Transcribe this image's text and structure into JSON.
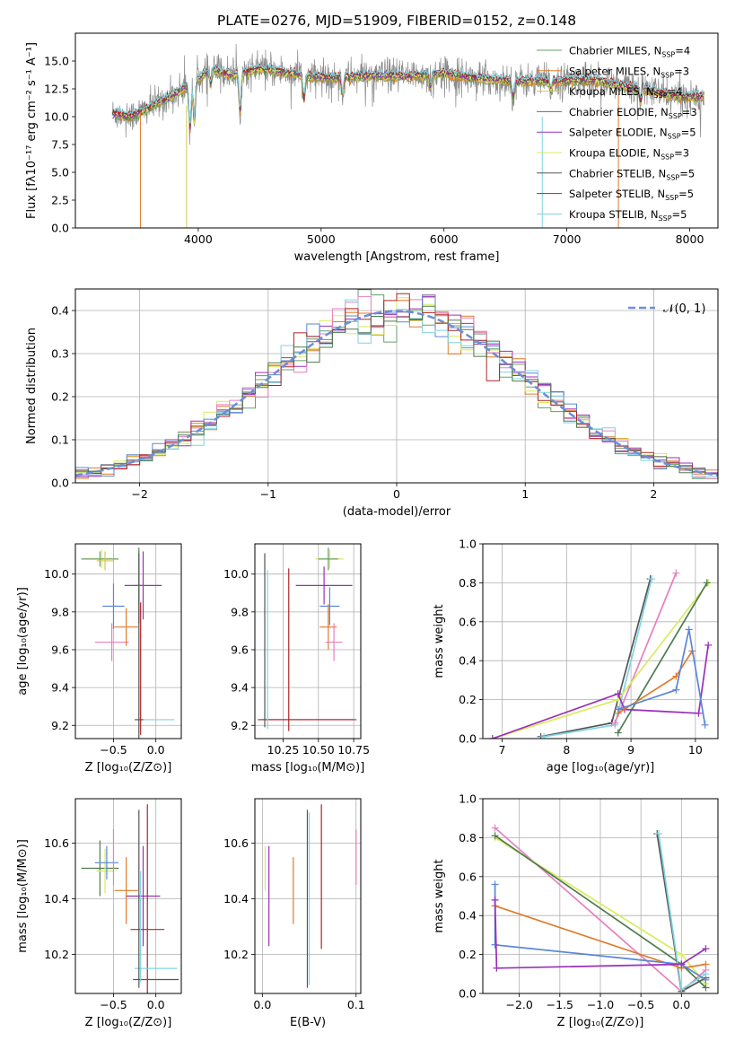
{
  "colors": {
    "Chabrier MILES": "#6a9f6a",
    "Salpeter MILES": "#e07b2a",
    "Kroupa MILES": "#d4c84a",
    "Chabrier ELODIE": "#4e7d4e",
    "Salpeter ELODIE": "#9b30b8",
    "Kroupa ELODIE": "#d8ec5e",
    "Chabrier STELIB": "#555555",
    "Salpeter STELIB": "#b22222",
    "Kroupa STELIB": "#7fd3e0",
    "normal": "#6a8fd8",
    "pink": "#e87fc0",
    "blue": "#5b86d8",
    "grid": "#b0b0b0"
  },
  "chart_data": [
    {
      "id": "spectrum",
      "type": "line",
      "title": "PLATE=0276, MJD=51909, FIBERID=0152, z=0.148",
      "xlabel": "wavelength [Angstrom, rest frame]",
      "ylabel": "Flux [fλ10⁻¹⁷ erg cm⁻² s⁻¹ A⁻¹]",
      "xlim": [
        3000,
        8230
      ],
      "ylim": [
        0,
        17.5
      ],
      "xticks": [
        4000,
        5000,
        6000,
        7000,
        8000
      ],
      "yticks": [
        0.0,
        2.5,
        5.0,
        7.5,
        10.0,
        12.5,
        15.0
      ],
      "legend": "top-right",
      "series": [
        {
          "name": "Chabrier MILES, N_SSP=4",
          "label": "Chabrier MILES, N",
          "sub": "SSP",
          "tail": "=4",
          "color": "Chabrier MILES"
        },
        {
          "name": "Salpeter MILES, N_SSP=3",
          "label": "Salpeter MILES, N",
          "sub": "SSP",
          "tail": "=3",
          "color": "Salpeter MILES"
        },
        {
          "name": "Kroupa MILES, N_SSP=4",
          "label": "Kroupa MILES, N",
          "sub": "SSP",
          "tail": "=4",
          "color": "Kroupa MILES"
        },
        {
          "name": "Chabrier ELODIE, N_SSP=3",
          "label": "Chabrier ELODIE, N",
          "sub": "SSP",
          "tail": "=3",
          "color": "Chabrier ELODIE"
        },
        {
          "name": "Salpeter ELODIE, N_SSP=5",
          "label": "Salpeter ELODIE, N",
          "sub": "SSP",
          "tail": "=5",
          "color": "Salpeter ELODIE"
        },
        {
          "name": "Kroupa ELODIE, N_SSP=3",
          "label": "Kroupa ELODIE, N",
          "sub": "SSP",
          "tail": "=3",
          "color": "Kroupa ELODIE"
        },
        {
          "name": "Chabrier STELIB, N_SSP=5",
          "label": "Chabrier STELIB, N",
          "sub": "SSP",
          "tail": "=5",
          "color": "Chabrier STELIB"
        },
        {
          "name": "Salpeter STELIB, N_SSP=5",
          "label": "Salpeter STELIB, N",
          "sub": "SSP",
          "tail": "=5",
          "color": "Salpeter STELIB"
        },
        {
          "name": "Kroupa STELIB, N_SSP=5",
          "label": "Kroupa STELIB, N",
          "sub": "SSP",
          "tail": "=5",
          "color": "Kroupa STELIB"
        }
      ],
      "continuum": [
        [
          3300,
          10.3
        ],
        [
          3450,
          10.0
        ],
        [
          3600,
          10.8
        ],
        [
          3800,
          12.0
        ],
        [
          3950,
          13.0
        ],
        [
          4100,
          14.2
        ],
        [
          4300,
          13.8
        ],
        [
          4500,
          14.3
        ],
        [
          4700,
          14.0
        ],
        [
          4900,
          13.6
        ],
        [
          5100,
          13.5
        ],
        [
          5400,
          13.7
        ],
        [
          5700,
          13.6
        ],
        [
          6000,
          13.9
        ],
        [
          6300,
          13.4
        ],
        [
          6600,
          13.2
        ],
        [
          6900,
          13.2
        ],
        [
          7200,
          13.3
        ],
        [
          7600,
          12.5
        ],
        [
          7900,
          11.8
        ],
        [
          8100,
          11.8
        ]
      ]
    },
    {
      "id": "residuals",
      "type": "histogram",
      "xlabel": "(data-model)/error",
      "ylabel": "Normed distribution",
      "xlim": [
        -2.5,
        2.5
      ],
      "ylim": [
        0,
        0.45
      ],
      "xticks": [
        -2,
        -1,
        0,
        1,
        2
      ],
      "yticks": [
        0.0,
        0.1,
        0.2,
        0.3,
        0.4
      ],
      "legend": "top-right",
      "legend_label": "𝒩(0, 1)",
      "bins": 50
    },
    {
      "id": "z-age",
      "type": "errorbar",
      "xlabel": "Z [log₁₀(Z/Z⊙)]",
      "ylabel": "age  [log₁₀(age/yr)]",
      "xlim": [
        -0.95,
        0.3
      ],
      "ylim": [
        9.13,
        10.16
      ],
      "xticks": [
        -0.5,
        0.0
      ],
      "yticks": [
        9.2,
        9.4,
        9.6,
        9.8,
        10.0
      ],
      "points": [
        {
          "x": -0.64,
          "y": 10.08,
          "xerr": 0.2,
          "yerr": 0.05,
          "c": "Kroupa ELODIE"
        },
        {
          "x": -0.66,
          "y": 10.08,
          "xerr": 0.22,
          "yerr": 0.04,
          "c": "Chabrier MILES"
        },
        {
          "x": -0.6,
          "y": 10.07,
          "xerr": 0.1,
          "yerr": 0.05,
          "c": "Kroupa MILES"
        },
        {
          "x": -0.5,
          "y": 9.83,
          "xerr": 0.13,
          "yerr": 0.12,
          "c": "blue"
        },
        {
          "x": -0.52,
          "y": 9.64,
          "xerr": 0.2,
          "yerr": 0.1,
          "c": "pink"
        },
        {
          "x": -0.35,
          "y": 9.72,
          "xerr": 0.14,
          "yerr": 0.1,
          "c": "Salpeter MILES"
        },
        {
          "x": -0.15,
          "y": 9.94,
          "xerr": 0.22,
          "yerr": 0.18,
          "c": "Salpeter ELODIE"
        },
        {
          "x": -0.2,
          "y": 9.94,
          "xerr": 0.05,
          "yerr": 0.2,
          "c": "Chabrier ELODIE"
        },
        {
          "x": 0.0,
          "y": 9.23,
          "xerr": 0.22,
          "yerr": 0.0,
          "c": "Kroupa STELIB"
        },
        {
          "x": -0.2,
          "y": 9.23,
          "xerr": 0.05,
          "yerr": 0.88,
          "c": "Chabrier STELIB"
        },
        {
          "x": -0.18,
          "y": 9.5,
          "xerr": 0.0,
          "yerr": 0.35,
          "c": "Salpeter STELIB"
        }
      ]
    },
    {
      "id": "mass-age",
      "type": "errorbar",
      "xlabel": "mass [log₁₀(M/M⊙)]",
      "ylabel": "",
      "xlim": [
        10.05,
        10.8
      ],
      "ylim": [
        9.13,
        10.16
      ],
      "xticks": [
        10.25,
        10.5,
        10.75
      ],
      "yticks": [
        9.2,
        9.4,
        9.6,
        9.8,
        10.0
      ],
      "points": [
        {
          "x": 10.58,
          "y": 10.08,
          "xerr": 0.1,
          "yerr": 0.05,
          "c": "Kroupa ELODIE"
        },
        {
          "x": 10.57,
          "y": 10.08,
          "xerr": 0.07,
          "yerr": 0.06,
          "c": "Chabrier MILES"
        },
        {
          "x": 10.54,
          "y": 9.94,
          "xerr": 0.2,
          "yerr": 0.1,
          "c": "Salpeter ELODIE"
        },
        {
          "x": 10.58,
          "y": 9.83,
          "xerr": 0.07,
          "yerr": 0.1,
          "c": "blue"
        },
        {
          "x": 10.57,
          "y": 9.72,
          "xerr": 0.06,
          "yerr": 0.12,
          "c": "Salpeter MILES"
        },
        {
          "x": 10.61,
          "y": 9.64,
          "xerr": 0.06,
          "yerr": 0.1,
          "c": "pink"
        },
        {
          "x": 10.42,
          "y": 9.23,
          "xerr": 0.35,
          "yerr": 0.0,
          "c": "Chabrier STELIB"
        },
        {
          "x": 10.42,
          "y": 9.23,
          "xerr": 0.33,
          "yerr": 0.0,
          "c": "Salpeter STELIB"
        },
        {
          "x": 10.29,
          "y": 9.6,
          "xerr": 0.0,
          "yerr": 0.43,
          "c": "Salpeter STELIB"
        },
        {
          "x": 10.12,
          "y": 9.65,
          "xerr": 0.0,
          "yerr": 0.46,
          "c": "Chabrier STELIB"
        },
        {
          "x": 10.14,
          "y": 9.6,
          "xerr": 0.0,
          "yerr": 0.42,
          "c": "Kroupa STELIB"
        }
      ]
    },
    {
      "id": "age-weight",
      "type": "line",
      "xlabel": "age  [log₁₀(age/yr)]",
      "ylabel": "mass weight",
      "xlim": [
        6.7,
        10.35
      ],
      "ylim": [
        0,
        1
      ],
      "xticks": [
        7,
        8,
        9,
        10
      ],
      "yticks": [
        0.0,
        0.2,
        0.4,
        0.6,
        0.8,
        1.0
      ],
      "series": [
        {
          "c": "Chabrier STELIB",
          "x": [
            7.6,
            8.7,
            9.3
          ],
          "y": [
            0.01,
            0.08,
            0.82
          ]
        },
        {
          "c": "Kroupa STELIB",
          "x": [
            7.65,
            8.75,
            9.32
          ],
          "y": [
            0.01,
            0.07,
            0.82
          ]
        },
        {
          "c": "pink",
          "x": [
            8.75,
            9.7
          ],
          "y": [
            0.08,
            0.85
          ]
        },
        {
          "c": "Kroupa ELODIE",
          "x": [
            6.85,
            8.8,
            10.2
          ],
          "y": [
            0.0,
            0.2,
            0.8
          ]
        },
        {
          "c": "Chabrier ELODIE",
          "x": [
            8.8,
            10.18
          ],
          "y": [
            0.03,
            0.8
          ]
        },
        {
          "c": "Salpeter ELODIE",
          "x": [
            6.85,
            8.8,
            8.9,
            10.05,
            10.2
          ],
          "y": [
            0.0,
            0.23,
            0.15,
            0.13,
            0.48
          ]
        },
        {
          "c": "Salpeter MILES",
          "x": [
            8.8,
            9.7,
            9.95
          ],
          "y": [
            0.13,
            0.32,
            0.45
          ]
        },
        {
          "c": "blue",
          "x": [
            8.8,
            9.7,
            9.9,
            10.15
          ],
          "y": [
            0.15,
            0.25,
            0.56,
            0.07
          ]
        }
      ]
    },
    {
      "id": "z-mass",
      "type": "errorbar",
      "xlabel": "Z [log₁₀(Z/Z⊙)]",
      "ylabel": "mass [log₁₀(M/M⊙)]",
      "xlim": [
        -0.95,
        0.3
      ],
      "ylim": [
        10.06,
        10.76
      ],
      "xticks": [
        -0.5,
        0.0
      ],
      "yticks": [
        10.2,
        10.4,
        10.6
      ],
      "points": [
        {
          "x": -0.66,
          "y": 10.51,
          "xerr": 0.22,
          "yerr": 0.1,
          "c": "Chabrier ELODIE"
        },
        {
          "x": -0.6,
          "y": 10.5,
          "xerr": 0.1,
          "yerr": 0.08,
          "c": "Kroupa ELODIE"
        },
        {
          "x": -0.58,
          "y": 10.53,
          "xerr": 0.14,
          "yerr": 0.06,
          "c": "blue"
        },
        {
          "x": -0.5,
          "y": 10.55,
          "xerr": 0.0,
          "yerr": 0.1,
          "c": "pink"
        },
        {
          "x": -0.35,
          "y": 10.43,
          "xerr": 0.14,
          "yerr": 0.12,
          "c": "Salpeter MILES"
        },
        {
          "x": -0.15,
          "y": 10.41,
          "xerr": 0.2,
          "yerr": 0.18,
          "c": "Salpeter ELODIE"
        },
        {
          "x": -0.1,
          "y": 10.29,
          "xerr": 0.2,
          "yerr": 0.45,
          "c": "Salpeter STELIB"
        },
        {
          "x": 0.0,
          "y": 10.15,
          "xerr": 0.25,
          "yerr": 0.0,
          "c": "Kroupa STELIB"
        },
        {
          "x": 0.0,
          "y": 10.11,
          "xerr": 0.27,
          "yerr": 0.0,
          "c": "Chabrier STELIB"
        },
        {
          "x": -0.2,
          "y": 10.4,
          "xerr": 0.0,
          "yerr": 0.32,
          "c": "Chabrier STELIB"
        },
        {
          "x": -0.18,
          "y": 10.3,
          "xerr": 0.0,
          "yerr": 0.2,
          "c": "Kroupa STELIB"
        }
      ]
    },
    {
      "id": "ebv-mass",
      "type": "errorbar",
      "xlabel": "E(B-V)",
      "ylabel": "",
      "xlim": [
        -0.008,
        0.105
      ],
      "ylim": [
        10.06,
        10.76
      ],
      "xticks": [
        0.0,
        0.1
      ],
      "yticks": [
        10.2,
        10.4,
        10.6
      ],
      "points": [
        {
          "x": 0.003,
          "y": 10.51,
          "xerr": 0.0,
          "yerr": 0.08,
          "c": "Kroupa ELODIE"
        },
        {
          "x": 0.007,
          "y": 10.41,
          "xerr": 0.0,
          "yerr": 0.18,
          "c": "Salpeter ELODIE"
        },
        {
          "x": 0.033,
          "y": 10.43,
          "xerr": 0.0,
          "yerr": 0.12,
          "c": "Salpeter MILES"
        },
        {
          "x": 0.048,
          "y": 10.4,
          "xerr": 0.0,
          "yerr": 0.32,
          "c": "Chabrier STELIB"
        },
        {
          "x": 0.05,
          "y": 10.4,
          "xerr": 0.0,
          "yerr": 0.31,
          "c": "Kroupa STELIB"
        },
        {
          "x": 0.063,
          "y": 10.48,
          "xerr": 0.0,
          "yerr": 0.26,
          "c": "Salpeter STELIB"
        },
        {
          "x": 0.1,
          "y": 10.55,
          "xerr": 0.0,
          "yerr": 0.1,
          "c": "pink"
        }
      ]
    },
    {
      "id": "z-weight",
      "type": "line",
      "xlabel": "Z [log₁₀(Z/Z⊙)]",
      "ylabel": "mass weight",
      "xlim": [
        -2.45,
        0.45
      ],
      "ylim": [
        0,
        1
      ],
      "xticks": [
        -2.0,
        -1.5,
        -1.0,
        -0.5,
        0.0
      ],
      "yticks": [
        0.0,
        0.2,
        0.4,
        0.6,
        0.8,
        1.0
      ],
      "series": [
        {
          "c": "pink",
          "x": [
            -2.3,
            0.0,
            0.3
          ],
          "y": [
            0.85,
            0.01,
            0.12
          ]
        },
        {
          "c": "Kroupa ELODIE",
          "x": [
            -2.3,
            0.0,
            0.3
          ],
          "y": [
            0.8,
            0.2,
            0.05
          ]
        },
        {
          "c": "Chabrier ELODIE",
          "x": [
            -2.3,
            0.0,
            0.3
          ],
          "y": [
            0.81,
            0.15,
            0.03
          ]
        },
        {
          "c": "Chabrier STELIB",
          "x": [
            -0.3,
            0.0,
            0.3
          ],
          "y": [
            0.82,
            0.01,
            0.08
          ]
        },
        {
          "c": "Kroupa STELIB",
          "x": [
            -0.28,
            0.0,
            0.3
          ],
          "y": [
            0.82,
            0.02,
            0.1
          ]
        },
        {
          "c": "Salpeter MILES",
          "x": [
            -2.3,
            0.0,
            0.3
          ],
          "y": [
            0.45,
            0.13,
            0.15
          ]
        },
        {
          "c": "blue",
          "x": [
            -2.3,
            -2.3,
            0.0,
            0.3
          ],
          "y": [
            0.56,
            0.25,
            0.15,
            0.07
          ]
        },
        {
          "c": "Salpeter ELODIE",
          "x": [
            -2.3,
            -2.28,
            0.0,
            0.3
          ],
          "y": [
            0.48,
            0.13,
            0.15,
            0.23
          ]
        }
      ]
    }
  ]
}
